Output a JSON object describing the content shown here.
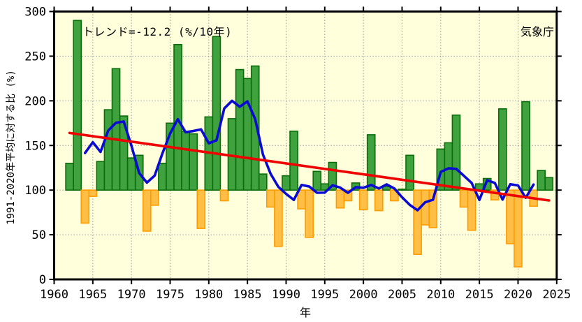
{
  "header": {
    "trend_label": "トレンド=-12.2 (%/10年)",
    "agency_label": "気象庁"
  },
  "axes": {
    "y_title": "1991-2020年平均に対する比 (%)",
    "x_title": "年",
    "y_ticks": [
      0,
      50,
      100,
      150,
      200,
      250,
      300
    ],
    "x_ticks": [
      1960,
      1965,
      1970,
      1975,
      1980,
      1985,
      1990,
      1995,
      2000,
      2005,
      2010,
      2015,
      2020,
      2025
    ]
  },
  "colors": {
    "plot_background": "#ffffdc",
    "bar_above_fill": "#3fa23f",
    "bar_above_stroke": "#0a6d0a",
    "bar_below_fill": "#ffbe45",
    "bar_below_stroke": "#ff9d00",
    "running_mean_line": "#0a0ad2",
    "trend_line": "#ef0000",
    "grid": "#999999",
    "frame": "#000000"
  },
  "chart_data": {
    "type": "bar",
    "title": "トレンド=-12.2 (%/10年)",
    "xlabel": "年",
    "ylabel": "1991-2020年平均に対する比 (%)",
    "xlim": [
      1960,
      2025
    ],
    "ylim": [
      0,
      300
    ],
    "grid": true,
    "baseline": 100,
    "x": [
      1962,
      1963,
      1964,
      1965,
      1966,
      1967,
      1968,
      1969,
      1970,
      1971,
      1972,
      1973,
      1974,
      1975,
      1976,
      1977,
      1978,
      1979,
      1980,
      1981,
      1982,
      1983,
      1984,
      1985,
      1986,
      1987,
      1988,
      1989,
      1990,
      1991,
      1992,
      1993,
      1994,
      1995,
      1996,
      1997,
      1998,
      1999,
      2000,
      2001,
      2002,
      2003,
      2004,
      2005,
      2006,
      2007,
      2008,
      2009,
      2010,
      2011,
      2012,
      2013,
      2014,
      2015,
      2016,
      2017,
      2018,
      2019,
      2020,
      2021,
      2022,
      2023,
      2024
    ],
    "series": [
      {
        "name": "annual_ratio_percent",
        "type": "bar",
        "values": [
          130,
          290,
          63,
          93,
          132,
          190,
          236,
          183,
          136,
          139,
          54,
          83,
          130,
          175,
          263,
          166,
          163,
          57,
          182,
          272,
          88,
          180,
          235,
          225,
          239,
          118,
          81,
          37,
          116,
          166,
          79,
          47,
          121,
          107,
          131,
          80,
          88,
          108,
          78,
          162,
          77,
          104,
          88,
          101,
          139,
          28,
          61,
          58,
          146,
          153,
          184,
          81,
          55,
          107,
          113,
          89,
          191,
          40,
          14,
          199,
          82,
          122,
          114
        ]
      },
      {
        "name": "five_year_running_mean",
        "type": "line",
        "x": [
          1964,
          1965,
          1966,
          1967,
          1968,
          1969,
          1970,
          1971,
          1972,
          1973,
          1974,
          1975,
          1976,
          1977,
          1978,
          1979,
          1980,
          1981,
          1982,
          1983,
          1984,
          1985,
          1986,
          1987,
          1988,
          1989,
          1990,
          1991,
          1992,
          1993,
          1994,
          1995,
          1996,
          1997,
          1998,
          1999,
          2000,
          2001,
          2002,
          2003,
          2004,
          2005,
          2006,
          2007,
          2008,
          2009,
          2010,
          2011,
          2012,
          2013,
          2014,
          2015,
          2016,
          2017,
          2018,
          2019,
          2020,
          2021,
          2022
        ],
        "values": [
          141.6,
          153.6,
          142.8,
          166.8,
          175.4,
          176.8,
          149.6,
          119,
          108.4,
          116.2,
          141,
          163.4,
          179.4,
          164.8,
          166.2,
          168,
          152.4,
          155.8,
          191.4,
          200,
          193.4,
          199.4,
          179.6,
          140,
          118.2,
          103.6,
          95.8,
          89,
          105.8,
          104,
          97,
          97.2,
          105.4,
          102.8,
          97,
          103.2,
          102.6,
          105.8,
          101.8,
          106.4,
          101.8,
          92,
          83.4,
          77.4,
          86.4,
          89.2,
          120.4,
          124.4,
          123.8,
          116,
          108,
          89,
          111,
          108,
          89.4,
          106.6,
          105.2,
          91.4,
          106.2
        ]
      },
      {
        "name": "linear_trend",
        "type": "line",
        "trend_per_decade": -12.2,
        "x": [
          1962,
          2024
        ],
        "values": [
          164,
          88.4
        ]
      }
    ],
    "legend": null
  }
}
